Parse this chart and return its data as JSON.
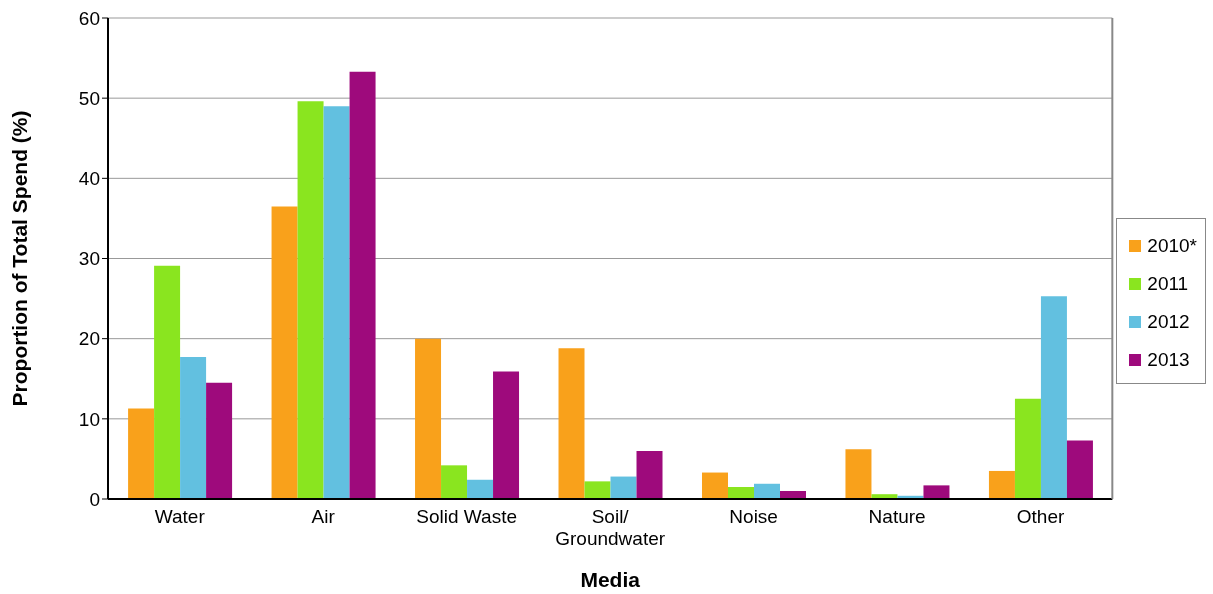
{
  "chart_data": {
    "type": "bar",
    "xlabel": "Media",
    "ylabel": "Proportion of Total Spend (%)",
    "categories": [
      "Water",
      "Air",
      "Solid Waste",
      "Soil/ Groundwater",
      "Noise",
      "Nature",
      "Other"
    ],
    "series": [
      {
        "name": "2010*",
        "color": "#f9a11b",
        "values": [
          11.3,
          36.5,
          20.0,
          18.8,
          3.3,
          6.2,
          3.5
        ]
      },
      {
        "name": "2011",
        "color": "#8ae51f",
        "values": [
          29.1,
          49.6,
          4.2,
          2.2,
          1.5,
          0.6,
          12.5
        ]
      },
      {
        "name": "2012",
        "color": "#62c0e0",
        "values": [
          17.7,
          49.0,
          2.4,
          2.8,
          1.9,
          0.4,
          25.3
        ]
      },
      {
        "name": "2013",
        "color": "#9e0a7c",
        "values": [
          14.5,
          53.3,
          15.9,
          6.0,
          1.0,
          1.7,
          7.3
        ]
      }
    ],
    "ylim": [
      0,
      60
    ],
    "yticks": [
      0,
      10,
      20,
      30,
      40,
      50,
      60
    ],
    "grid": "y",
    "legend": "right"
  }
}
